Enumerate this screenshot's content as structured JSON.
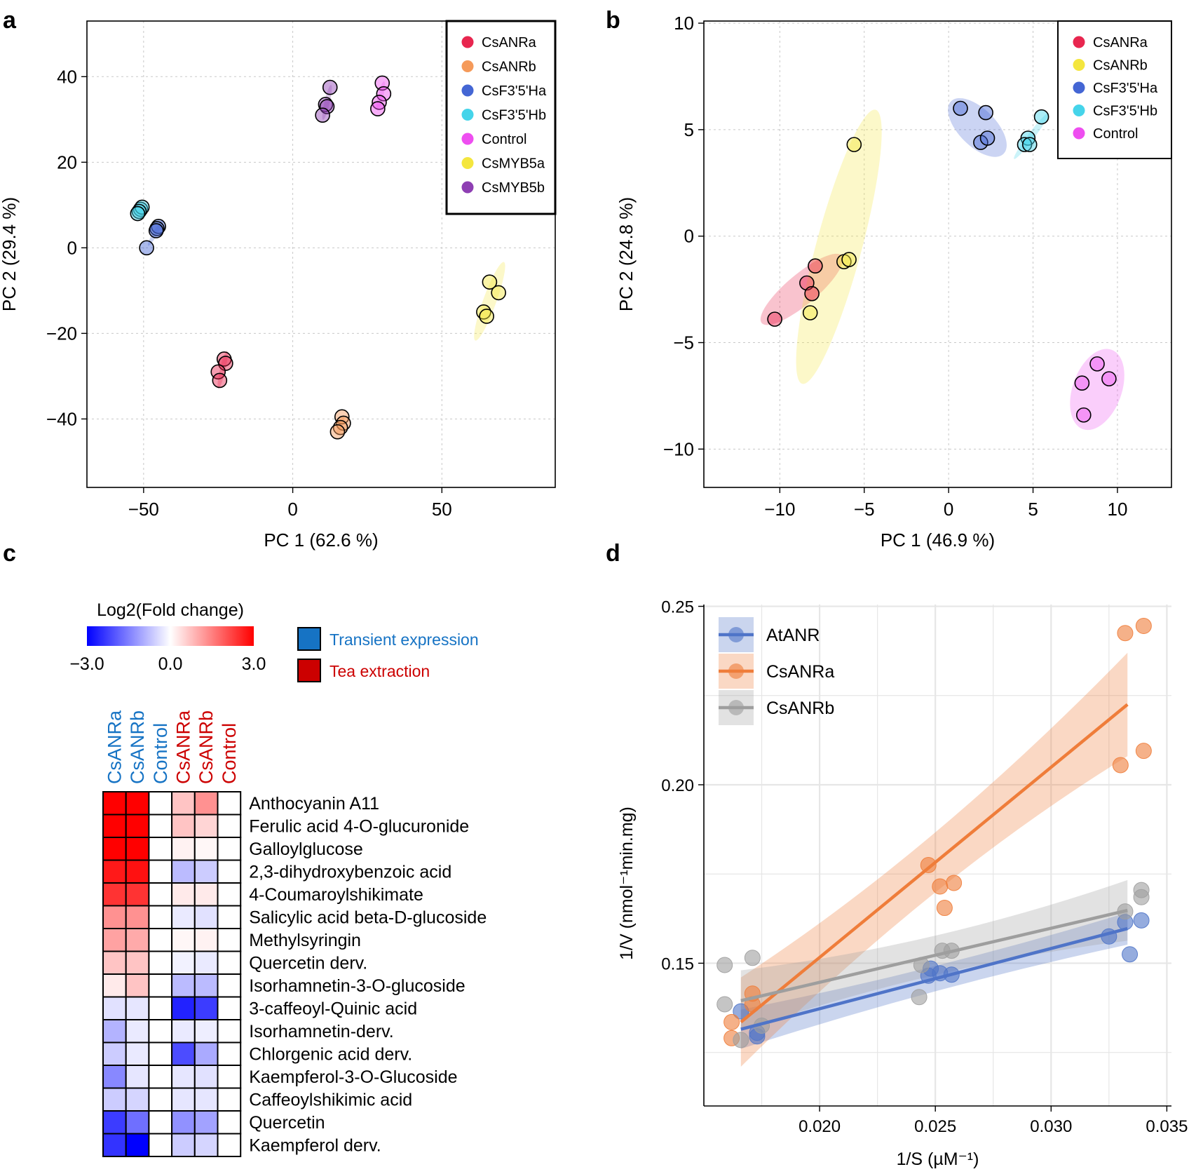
{
  "figure": {
    "panel_labels": [
      "a",
      "b",
      "c",
      "d"
    ]
  },
  "chart_data": [
    {
      "id": "a",
      "type": "scatter",
      "title": "",
      "xlabel": "PC 1 (62.6 %)",
      "ylabel": "PC 2 (29.4 %)",
      "xlim": [
        -69,
        88
      ],
      "ylim": [
        -56,
        53
      ],
      "xticks": [
        -50,
        0,
        50
      ],
      "yticks": [
        -40,
        -20,
        0,
        20,
        40
      ],
      "xtick_labels": [
        "−50",
        "0",
        "50"
      ],
      "ytick_labels": [
        "−40",
        "−20",
        "0",
        "20",
        "40"
      ],
      "grid": true,
      "legend_position": "top-right",
      "series": [
        {
          "name": "CsANRa",
          "color": "#e8264f",
          "points": [
            [
              -23,
              -26
            ],
            [
              -22.5,
              -27
            ],
            [
              -25,
              -29
            ],
            [
              -24.5,
              -31
            ]
          ],
          "ellipse": {
            "cx": -23.5,
            "cy": -28.5,
            "rx": 6.5,
            "ry": 0.9,
            "angle": 77
          }
        },
        {
          "name": "CsANRb",
          "color": "#f59a5a",
          "points": [
            [
              16.5,
              -39.5
            ],
            [
              17,
              -41
            ],
            [
              16,
              -42
            ],
            [
              15,
              -43
            ]
          ],
          "ellipse": {
            "cx": 16,
            "cy": -41.5,
            "rx": 3.5,
            "ry": 0.8,
            "angle": 72
          }
        },
        {
          "name": "CsF3'5'Ha",
          "color": "#4466d4",
          "points": [
            [
              -45,
              5
            ],
            [
              -45.5,
              4.5
            ],
            [
              -45.8,
              4
            ],
            [
              -49,
              0
            ]
          ],
          "ellipse": {
            "cx": -46,
            "cy": 3.5,
            "rx": 5,
            "ry": 0.8,
            "angle": 60
          }
        },
        {
          "name": "CsF3'5'Hb",
          "color": "#45d4ea",
          "points": [
            [
              -51,
              9
            ],
            [
              -50.5,
              9.5
            ],
            [
              -51.5,
              8.5
            ],
            [
              -52,
              8
            ]
          ],
          "ellipse": {
            "cx": -51,
            "cy": 8.7,
            "rx": 2.2,
            "ry": 0.7,
            "angle": 40
          }
        },
        {
          "name": "Control",
          "color": "#ee4ef0",
          "points": [
            [
              30,
              38.5
            ],
            [
              30.5,
              36
            ],
            [
              29,
              34
            ],
            [
              28.5,
              32.5
            ]
          ],
          "ellipse": {
            "cx": 29.5,
            "cy": 35.5,
            "rx": 5,
            "ry": 0.9,
            "angle": 77
          }
        },
        {
          "name": "CsMYB5a",
          "color": "#f4e63e",
          "points": [
            [
              66,
              -8
            ],
            [
              69,
              -10.5
            ],
            [
              64,
              -15
            ],
            [
              65,
              -16
            ]
          ],
          "ellipse": {
            "cx": 66,
            "cy": -12.5,
            "rx": 14,
            "ry": 2.2,
            "angle": 70
          }
        },
        {
          "name": "CsMYB5b",
          "color": "#8e3fb3",
          "points": [
            [
              12.5,
              37.5
            ],
            [
              11,
              33.5
            ],
            [
              11.5,
              33
            ],
            [
              10,
              31
            ]
          ],
          "ellipse": {
            "cx": 11.5,
            "cy": 34,
            "rx": 6,
            "ry": 0.9,
            "angle": 77
          }
        }
      ]
    },
    {
      "id": "b",
      "type": "scatter",
      "title": "",
      "xlabel": "PC 1 (46.9 %)",
      "ylabel": "PC 2 (24.8 %)",
      "xlim": [
        -14.5,
        13.2
      ],
      "ylim": [
        -11.8,
        10.1
      ],
      "xticks": [
        -10,
        -5,
        0,
        5,
        10
      ],
      "yticks": [
        -10,
        -5,
        0,
        5,
        10
      ],
      "xtick_labels": [
        "−10",
        "−5",
        "0",
        "5",
        "10"
      ],
      "ytick_labels": [
        "−10",
        "−5",
        "0",
        "5",
        "10"
      ],
      "grid": true,
      "legend_position": "top-right",
      "series": [
        {
          "name": "CsANRa",
          "color": "#e8264f",
          "points": [
            [
              -7.9,
              -1.4
            ],
            [
              -8.4,
              -2.2
            ],
            [
              -8.1,
              -2.7
            ],
            [
              -10.3,
              -3.9
            ]
          ],
          "ellipse": {
            "cx": -8.7,
            "cy": -2.5,
            "rx": 3.1,
            "ry": 0.9,
            "angle": 40
          }
        },
        {
          "name": "CsANRb",
          "color": "#f4e63e",
          "points": [
            [
              -5.6,
              4.3
            ],
            [
              -6.2,
              -1.2
            ],
            [
              -5.9,
              -1.1
            ],
            [
              -8.2,
              -3.6
            ]
          ],
          "ellipse": {
            "cx": -6.5,
            "cy": -0.5,
            "rx": 8.4,
            "ry": 1.35,
            "angle": 75
          }
        },
        {
          "name": "CsF3'5'Ha",
          "color": "#4466d4",
          "points": [
            [
              0.7,
              6.0
            ],
            [
              2.2,
              5.8
            ],
            [
              1.9,
              4.4
            ],
            [
              2.3,
              4.6
            ]
          ],
          "ellipse": {
            "cx": 1.7,
            "cy": 5.1,
            "rx": 2.2,
            "ry": 1.1,
            "angle": -45
          }
        },
        {
          "name": "CsF3'5'Hb",
          "color": "#45d4ea",
          "points": [
            [
              5.5,
              5.6
            ],
            [
              4.7,
              4.6
            ],
            [
              4.5,
              4.3
            ],
            [
              4.8,
              4.3
            ]
          ],
          "ellipse": {
            "cx": 4.9,
            "cy": 4.7,
            "rx": 1.7,
            "ry": 0.2,
            "angle": 53
          }
        },
        {
          "name": "Control",
          "color": "#ee4ef0",
          "points": [
            [
              8.8,
              -6.0
            ],
            [
              9.5,
              -6.7
            ],
            [
              7.9,
              -6.9
            ],
            [
              8.0,
              -8.4
            ]
          ],
          "ellipse": {
            "cx": 8.8,
            "cy": -7.2,
            "rx": 2.5,
            "ry": 1.45,
            "angle": 70
          }
        }
      ]
    },
    {
      "id": "c",
      "type": "heatmap",
      "title": "Log2(Fold change)",
      "colorbar_min": -3.0,
      "colorbar_max": 3.0,
      "colorbar_tick_labels": [
        "−3.0",
        "0.0",
        "3.0"
      ],
      "columns": [
        "CsANRa",
        "CsANRb",
        "Control",
        "CsANRa",
        "CsANRb",
        "Control"
      ],
      "column_groups": [
        "Transient expression",
        "Transient expression",
        "Transient expression",
        "Tea extraction",
        "Tea extraction",
        "Tea extraction"
      ],
      "group_legend": [
        {
          "label": "Transient expression",
          "color": "#1673c4",
          "text_color": "#1673c4"
        },
        {
          "label": "Tea extraction",
          "color": "#cc0000",
          "text_color": "#cc0000"
        }
      ],
      "rows": [
        "Anthocyanin A11",
        "Ferulic acid 4-O-glucuronide",
        "Galloylglucose",
        "2,3-dihydroxybenzoic acid",
        "4-Coumaroylshikimate",
        "Salicylic acid beta-D-glucoside",
        "Methylsyringin",
        "Quercetin derv.",
        "Isorhamnetin-3-O-glucoside",
        "3-caffeoyl-Quinic acid",
        "Isorhamnetin-derv.",
        "Chlorgenic acid derv.",
        "Kaempferol-3-O-Glucoside",
        "Caffeoylshikimic acid",
        "Quercetin",
        "Kaempferol derv."
      ],
      "values": [
        [
          3.0,
          3.0,
          0,
          0.7,
          1.3,
          0
        ],
        [
          3.0,
          3.0,
          0,
          0.7,
          0.5,
          0
        ],
        [
          3.0,
          3.0,
          0,
          0.15,
          0.1,
          0
        ],
        [
          2.7,
          2.8,
          0,
          -0.8,
          -0.6,
          0
        ],
        [
          2.4,
          2.4,
          0,
          0.25,
          0.25,
          0
        ],
        [
          1.3,
          1.3,
          0,
          -0.25,
          -0.35,
          0
        ],
        [
          1.1,
          1.0,
          0,
          0.1,
          0.15,
          0
        ],
        [
          0.7,
          0.7,
          0,
          -0.15,
          -0.25,
          0
        ],
        [
          0.25,
          0.7,
          0,
          -0.8,
          -0.8,
          0
        ],
        [
          -0.35,
          -0.3,
          0,
          -2.6,
          -2.3,
          0
        ],
        [
          -0.9,
          -0.25,
          0,
          -0.25,
          -0.2,
          0
        ],
        [
          -0.6,
          -0.25,
          0,
          -2.1,
          -1.0,
          0
        ],
        [
          -1.4,
          -0.3,
          0,
          -0.3,
          -0.35,
          0
        ],
        [
          -0.6,
          -0.5,
          0,
          -0.3,
          -0.3,
          0
        ],
        [
          -2.3,
          -1.7,
          0,
          -1.3,
          -1.1,
          0
        ],
        [
          -2.4,
          -3.0,
          0,
          -0.6,
          -0.5,
          0
        ]
      ]
    },
    {
      "id": "d",
      "type": "scatter",
      "title": "",
      "xlabel": "1/S (µM⁻¹)",
      "ylabel": "1/V (nmol⁻¹min.mg)",
      "xlim": [
        0.015,
        0.0352
      ],
      "ylim": [
        0.11,
        0.2505
      ],
      "xticks": [
        0.02,
        0.025,
        0.03,
        0.035
      ],
      "yticks": [
        0.15,
        0.2,
        0.25
      ],
      "xtick_labels": [
        "0.020",
        "0.025",
        "0.030",
        "0.035"
      ],
      "ytick_labels": [
        "0.15",
        "0.20",
        "0.25"
      ],
      "grid": true,
      "legend_position": "top-left",
      "series": [
        {
          "name": "AtANR",
          "color": "#4f74c8",
          "fit": [
            [
              0.0166,
              0.1315
            ],
            [
              0.0333,
              0.1597
            ]
          ],
          "band_halfwidth": [
            0.0055,
            0.0035,
            0.0045
          ],
          "points": [
            [
              0.0166,
              0.1365
            ],
            [
              0.0173,
              0.1305
            ],
            [
              0.0173,
              0.1295
            ],
            [
              0.0247,
              0.1465
            ],
            [
              0.0248,
              0.1485
            ],
            [
              0.0252,
              0.1472
            ],
            [
              0.0257,
              0.1468
            ],
            [
              0.0325,
              0.1575
            ],
            [
              0.0332,
              0.1615
            ],
            [
              0.0334,
              0.1525
            ],
            [
              0.0339,
              0.162
            ]
          ]
        },
        {
          "name": "CsANRa",
          "color": "#ef7d3a",
          "fit": [
            [
              0.0166,
              0.1335
            ],
            [
              0.0333,
              0.2225
            ]
          ],
          "band_halfwidth": [
            0.0125,
            0.0055,
            0.0145
          ],
          "points": [
            [
              0.0162,
              0.1335
            ],
            [
              0.0162,
              0.129
            ],
            [
              0.0171,
              0.1415
            ],
            [
              0.0171,
              0.1385
            ],
            [
              0.0247,
              0.1775
            ],
            [
              0.0252,
              0.1715
            ],
            [
              0.0254,
              0.1655
            ],
            [
              0.0258,
              0.1725
            ],
            [
              0.033,
              0.2055
            ],
            [
              0.0332,
              0.2425
            ],
            [
              0.034,
              0.2095
            ],
            [
              0.034,
              0.2445
            ]
          ]
        },
        {
          "name": "CsANRb",
          "color": "#9e9e9e",
          "fit": [
            [
              0.0166,
              0.1395
            ],
            [
              0.0333,
              0.1648
            ]
          ],
          "band_halfwidth": [
            0.0085,
            0.0042,
            0.0085
          ],
          "points": [
            [
              0.0159,
              0.1495
            ],
            [
              0.0159,
              0.1385
            ],
            [
              0.0166,
              0.1285
            ],
            [
              0.0171,
              0.1515
            ],
            [
              0.0175,
              0.1325
            ],
            [
              0.0243,
              0.1405
            ],
            [
              0.0244,
              0.1495
            ],
            [
              0.0253,
              0.1535
            ],
            [
              0.0257,
              0.1535
            ],
            [
              0.0332,
              0.1645
            ],
            [
              0.0339,
              0.1685
            ],
            [
              0.0339,
              0.1705
            ]
          ]
        }
      ]
    }
  ]
}
